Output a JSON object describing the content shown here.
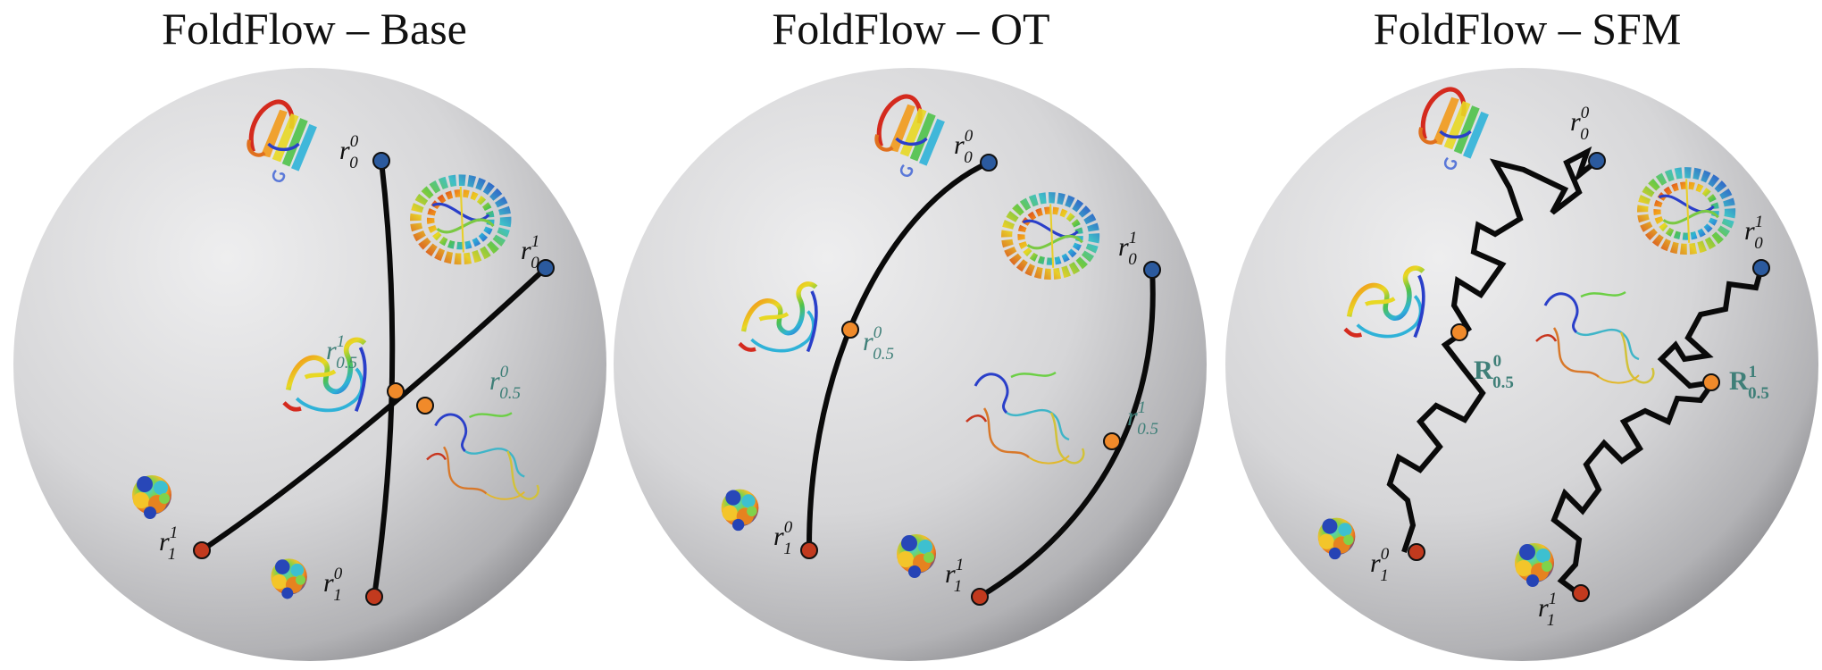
{
  "panels": [
    {
      "title": "FoldFlow – Base",
      "labels": {
        "start_a": "r",
        "start_a_sub": "0",
        "start_a_sup": "0",
        "start_b": "r",
        "start_b_sub": "0",
        "start_b_sup": "1",
        "end_a": "r",
        "end_a_sub": "1",
        "end_a_sup": "0",
        "end_b": "r",
        "end_b_sub": "1",
        "end_b_sup": "1",
        "mid_a": "r",
        "mid_a_sub": "0.5",
        "mid_a_sup": "1",
        "mid_b": "r",
        "mid_b_sub": "0.5",
        "mid_b_sup": "0"
      }
    },
    {
      "title": "FoldFlow – OT",
      "labels": {
        "start_a": "r",
        "start_a_sub": "0",
        "start_a_sup": "0",
        "start_b": "r",
        "start_b_sub": "0",
        "start_b_sup": "1",
        "end_a": "r",
        "end_a_sub": "1",
        "end_a_sup": "0",
        "end_b": "r",
        "end_b_sub": "1",
        "end_b_sup": "1",
        "mid_a": "r",
        "mid_a_sub": "0.5",
        "mid_a_sup": "0",
        "mid_b": "r",
        "mid_b_sub": "0.5",
        "mid_b_sup": "1"
      }
    },
    {
      "title": "FoldFlow – SFM",
      "labels": {
        "start_a": "r",
        "start_a_sub": "0",
        "start_a_sup": "0",
        "start_b": "r",
        "start_b_sub": "0",
        "start_b_sup": "1",
        "end_a": "r",
        "end_a_sub": "1",
        "end_a_sup": "0",
        "end_b": "r",
        "end_b_sub": "1",
        "end_b_sup": "1",
        "mid_a": "R",
        "mid_a_sub": "0.5",
        "mid_a_sup": "0",
        "mid_b": "R",
        "mid_b_sub": "0.5",
        "mid_b_sup": "1"
      }
    }
  ],
  "colors": {
    "start_point": "#2b5a9e",
    "mid_point": "#f08a2a",
    "end_point": "#c23a1e",
    "mid_label": "#3f7f78",
    "path": "#0a0a0a"
  },
  "icons": [
    "protein-sheet-icon",
    "protein-helix-icon",
    "protein-coil-icon",
    "protein-blob-icon"
  ]
}
